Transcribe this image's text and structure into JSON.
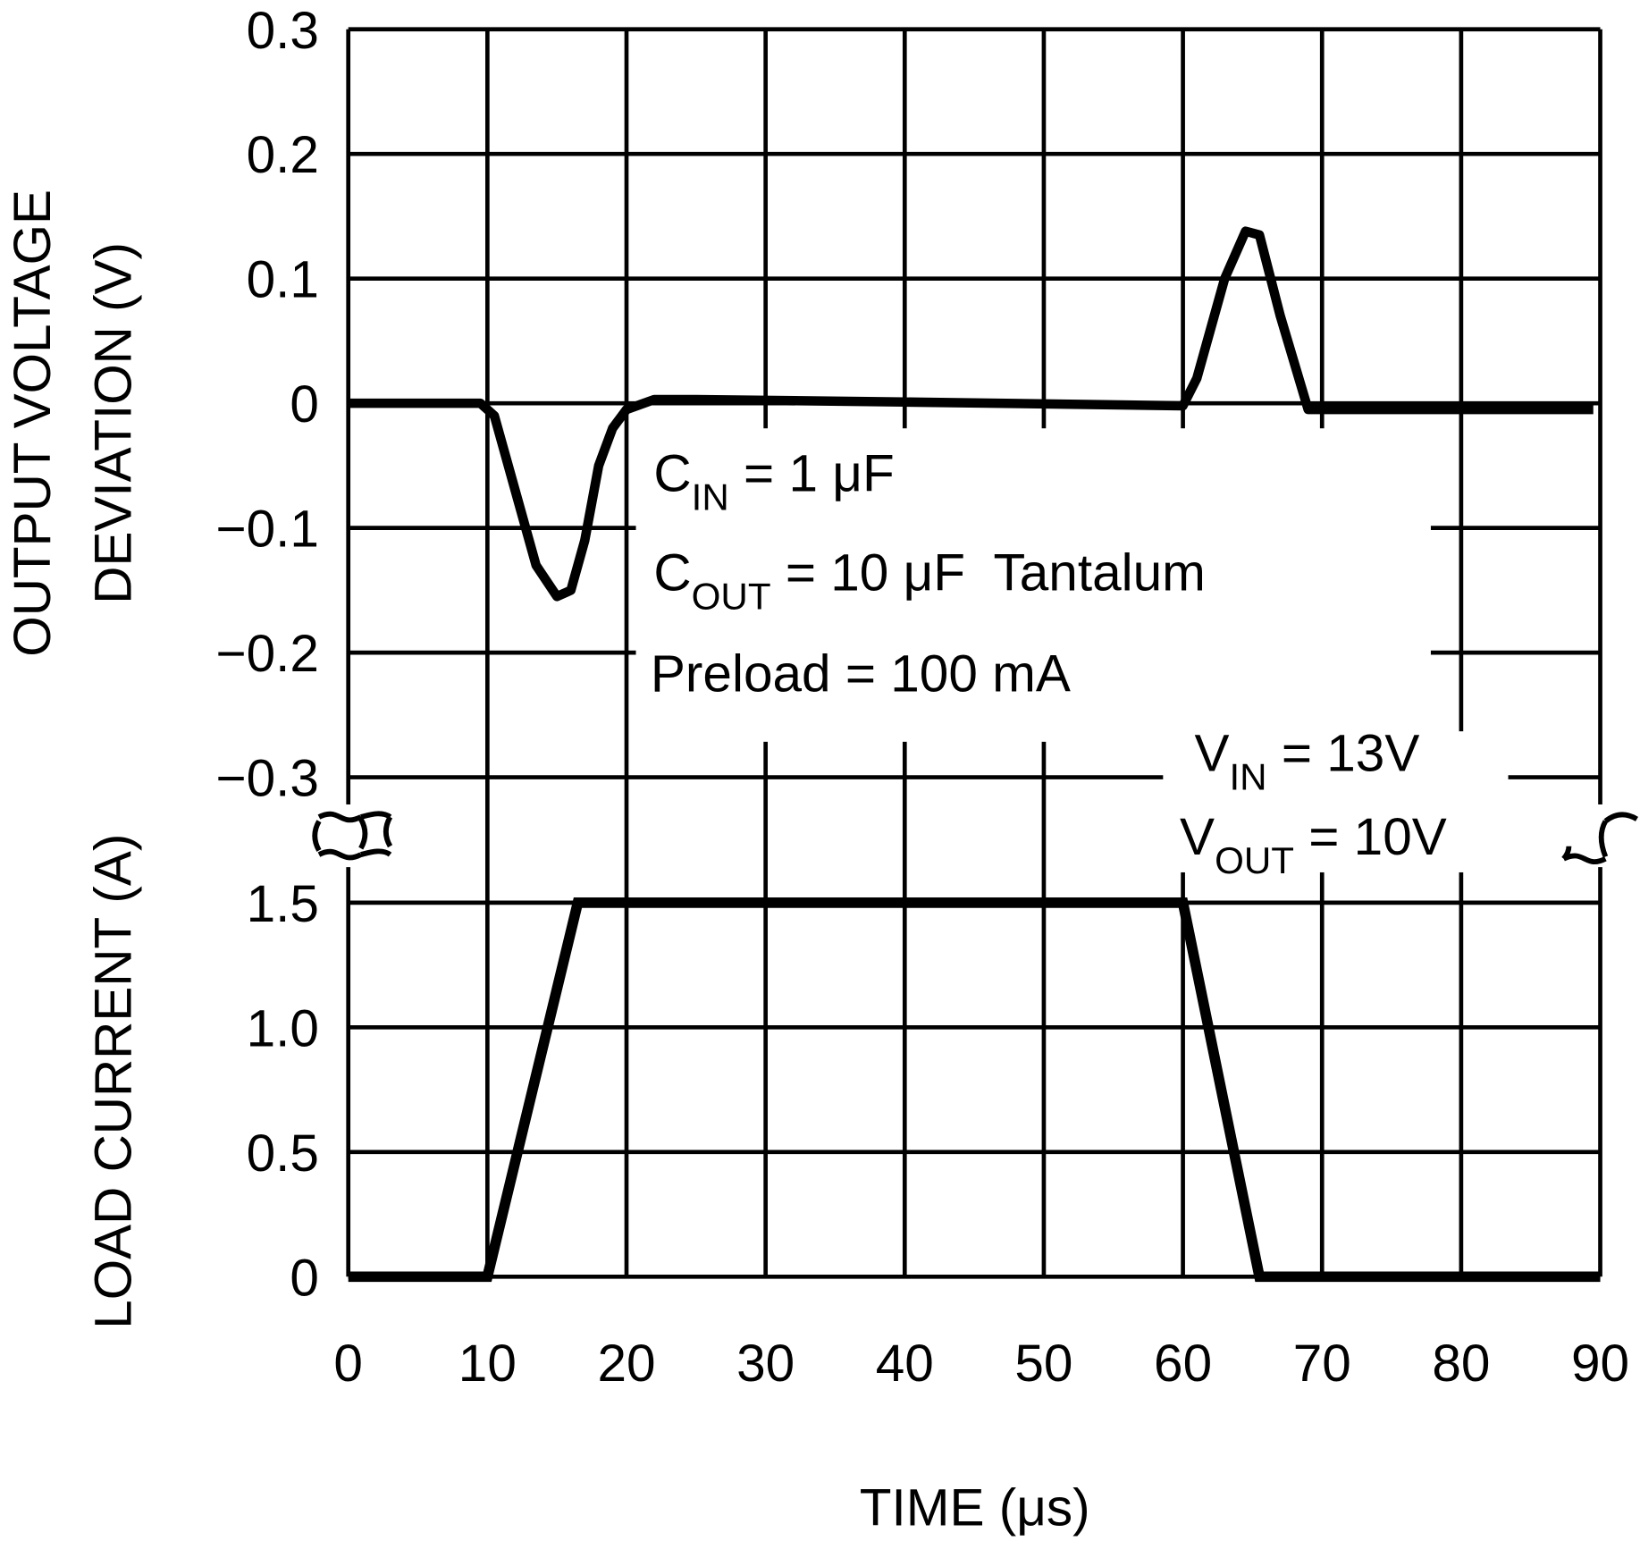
{
  "chart_data": {
    "type": "line",
    "xlabel": "TIME (μs)",
    "x_ticks": [
      "0",
      "10",
      "20",
      "30",
      "40",
      "50",
      "60",
      "70",
      "80",
      "90"
    ],
    "xlim": [
      0,
      90
    ],
    "grid": true,
    "panels": [
      {
        "ylabel_line1": "OUTPUT VOLTAGE",
        "ylabel_line2": "DEVIATION (V)",
        "ylim": [
          -0.3,
          0.3
        ],
        "y_ticks": [
          "0.3",
          "0.2",
          "0.1",
          "0",
          "-0.1",
          "-0.2",
          "-0.3"
        ],
        "series": [
          {
            "x": [
              0,
              9.5,
              10.5,
              12,
              13.5,
              15,
              16,
              17,
              18,
              19,
              20,
              22,
              25,
              40,
              60,
              61,
              63,
              64.5,
              65.5,
              67,
              69,
              70,
              89.5
            ],
            "y": [
              0,
              0,
              -0.01,
              -0.07,
              -0.13,
              -0.155,
              -0.15,
              -0.11,
              -0.05,
              -0.02,
              -0.005,
              0.003,
              0.003,
              0.001,
              -0.002,
              0.02,
              0.1,
              0.138,
              0.135,
              0.07,
              -0.005,
              -0.005,
              -0.005
            ]
          }
        ]
      },
      {
        "ylabel": "LOAD CURRENT (A)",
        "ylim": [
          0,
          1.5
        ],
        "y_ticks": [
          "1.5",
          "1.0",
          "0.5",
          "0"
        ],
        "series": [
          {
            "x": [
              0,
              10,
              16.5,
              60,
              65.5,
              90
            ],
            "y": [
              0,
              0,
              1.5,
              1.5,
              0,
              0
            ]
          }
        ]
      }
    ],
    "annotations": {
      "cin": {
        "main": "C",
        "sub": "IN",
        "rest": " = 1 μF"
      },
      "cout": {
        "main": "C",
        "sub": "OUT",
        "rest": " = 10 μF  Tantalum"
      },
      "preload": "Preload = 100 mA",
      "vin": {
        "main": "V",
        "sub": "IN",
        "rest": " = 13V"
      },
      "vout": {
        "main": "V",
        "sub": "OUT",
        "rest": " = 10V"
      }
    }
  }
}
